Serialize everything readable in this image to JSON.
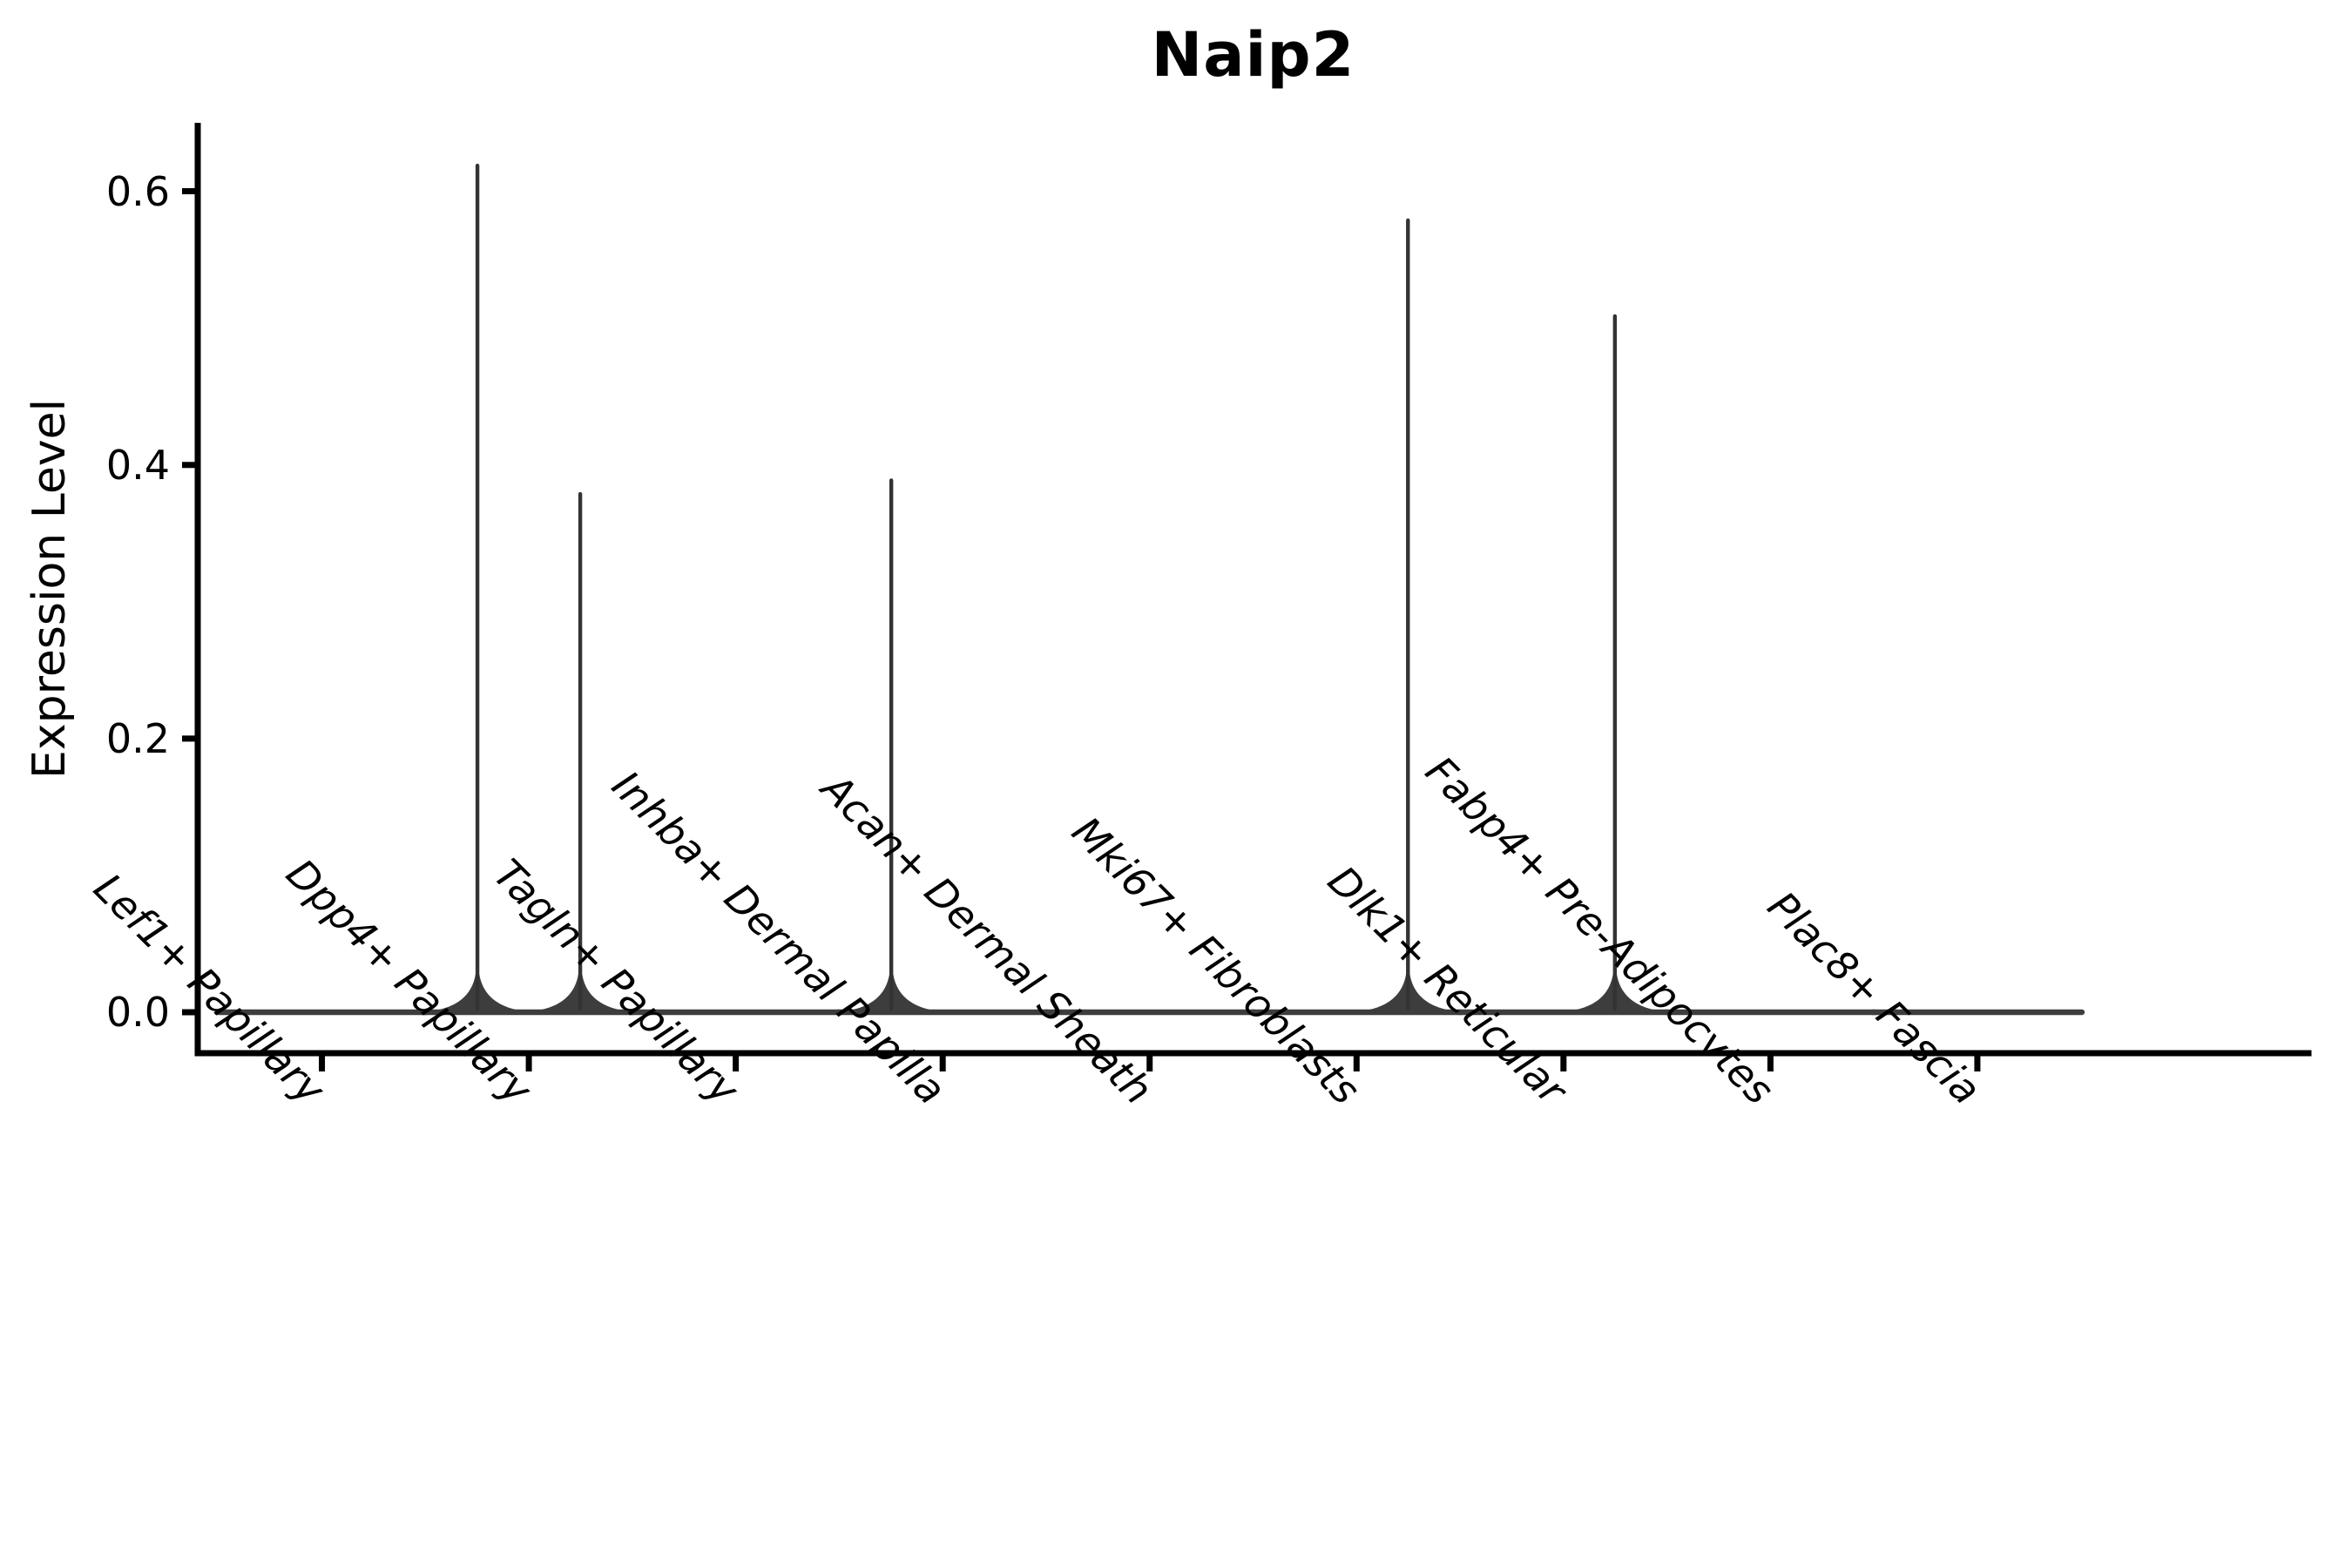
{
  "figure": {
    "background": "#ffffff"
  },
  "chart_data": {
    "type": "violin",
    "title": "Naip2",
    "xlabel": "",
    "ylabel": "Expression Level",
    "ylim": [
      0,
      0.65
    ],
    "y_tick_labels": [
      "0.0",
      "0.2",
      "0.4",
      "0.6"
    ],
    "grid": false,
    "legend": null,
    "x_tick_label_rotation_deg": 45,
    "categories": [
      "Lef1+ Papillary",
      "Dpp4+ Papillary",
      "Tagln+ Papillary",
      "Inhba+ Dermal Papilla",
      "Acan+ Dermal Sheath",
      "Mki67+ Fibroblasts",
      "Dlk1+ Reticular",
      "Fabp4+ Pre-Adipocytes",
      "Plac8+ Fascia"
    ],
    "series": [
      {
        "category": "Lef1+ Papillary",
        "baseline_value": 0.0,
        "spikes": []
      },
      {
        "category": "Dpp4+ Papillary",
        "baseline_value": 0.0,
        "spikes": [
          {
            "position": "left",
            "max_expression": 0.62
          },
          {
            "position": "right",
            "max_expression": 0.38
          }
        ]
      },
      {
        "category": "Tagln+ Papillary",
        "baseline_value": 0.0,
        "spikes": []
      },
      {
        "category": "Inhba+ Dermal Papilla",
        "baseline_value": 0.0,
        "spikes": [
          {
            "position": "left",
            "max_expression": 0.39
          }
        ]
      },
      {
        "category": "Acan+ Dermal Sheath",
        "baseline_value": 0.0,
        "spikes": []
      },
      {
        "category": "Mki67+ Fibroblasts",
        "baseline_value": 0.0,
        "spikes": [
          {
            "position": "right",
            "max_expression": 0.58
          }
        ]
      },
      {
        "category": "Dlk1+ Reticular",
        "baseline_value": 0.0,
        "spikes": [
          {
            "position": "right",
            "max_expression": 0.51
          }
        ]
      },
      {
        "category": "Fabp4+ Pre-Adipocytes",
        "baseline_value": 0.0,
        "spikes": []
      },
      {
        "category": "Plac8+ Fascia",
        "baseline_value": 0.0,
        "spikes": []
      }
    ],
    "style": {
      "violin_color": "#3d3d3d",
      "spike_color": "#333333",
      "axis_color": "#000000",
      "text_color": "#000000",
      "background": "#ffffff"
    }
  }
}
